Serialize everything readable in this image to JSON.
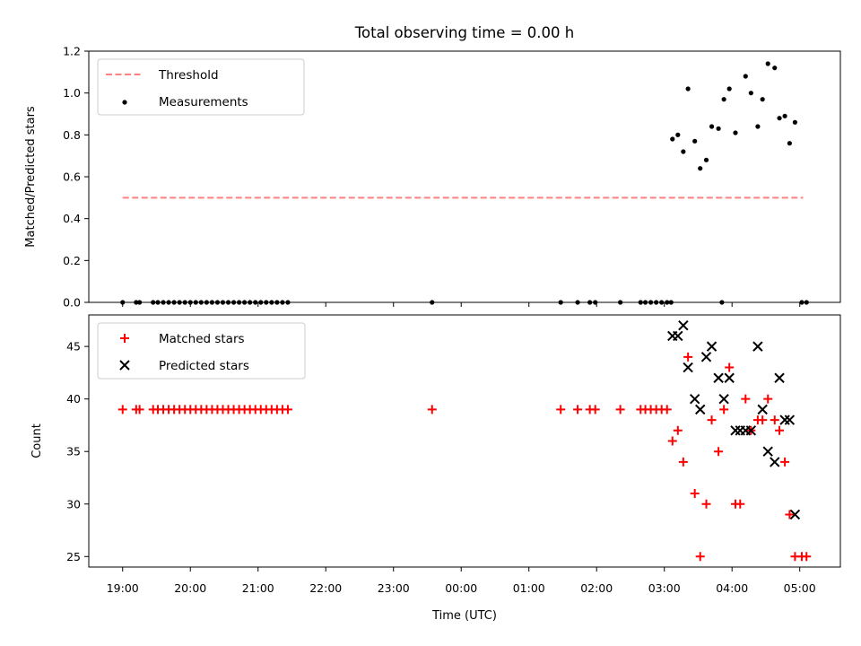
{
  "chart_data": [
    {
      "type": "scatter",
      "title": "Total observing time = 0.00 h",
      "xlabel": "",
      "ylabel": "Matched/Predicted stars",
      "xlim": [
        -0.5,
        10.6
      ],
      "ylim": [
        0,
        1.2
      ],
      "yticks": [
        "0.0",
        "0.2",
        "0.4",
        "0.6",
        "0.8",
        "1.0",
        "1.2"
      ],
      "legend_position": "top-left",
      "threshold": {
        "name": "Threshold",
        "value": 0.5,
        "x_range": [
          0,
          10.05
        ],
        "color": "#ff8080",
        "style": "dashed"
      },
      "series": [
        {
          "name": "Measurements",
          "color": "#000000",
          "marker": "dot",
          "points": [
            [
              0,
              0
            ],
            [
              0.2,
              0
            ],
            [
              0.25,
              0
            ],
            [
              0.45,
              0
            ],
            [
              0.52,
              0
            ],
            [
              0.6,
              0
            ],
            [
              0.68,
              0
            ],
            [
              0.76,
              0
            ],
            [
              0.84,
              0
            ],
            [
              0.92,
              0
            ],
            [
              1.0,
              0
            ],
            [
              1.08,
              0
            ],
            [
              1.16,
              0
            ],
            [
              1.24,
              0
            ],
            [
              1.32,
              0
            ],
            [
              1.4,
              0
            ],
            [
              1.48,
              0
            ],
            [
              1.56,
              0
            ],
            [
              1.64,
              0
            ],
            [
              1.72,
              0
            ],
            [
              1.8,
              0
            ],
            [
              1.88,
              0
            ],
            [
              1.96,
              0
            ],
            [
              2.04,
              0
            ],
            [
              2.12,
              0
            ],
            [
              2.2,
              0
            ],
            [
              2.28,
              0
            ],
            [
              2.36,
              0
            ],
            [
              2.44,
              0
            ],
            [
              4.57,
              0
            ],
            [
              6.47,
              0
            ],
            [
              6.72,
              0
            ],
            [
              6.9,
              0
            ],
            [
              6.98,
              0
            ],
            [
              7.35,
              0
            ],
            [
              7.65,
              0
            ],
            [
              7.72,
              0
            ],
            [
              7.8,
              0
            ],
            [
              7.88,
              0
            ],
            [
              7.96,
              0
            ],
            [
              8.04,
              0
            ],
            [
              8.1,
              0
            ],
            [
              8.85,
              0
            ],
            [
              10.03,
              0
            ],
            [
              10.1,
              0
            ],
            [
              8.12,
              0.78
            ],
            [
              8.2,
              0.8
            ],
            [
              8.28,
              0.72
            ],
            [
              8.35,
              1.02
            ],
            [
              8.45,
              0.77
            ],
            [
              8.53,
              0.64
            ],
            [
              8.62,
              0.68
            ],
            [
              8.7,
              0.84
            ],
            [
              8.8,
              0.83
            ],
            [
              8.88,
              0.97
            ],
            [
              8.96,
              1.02
            ],
            [
              9.05,
              0.81
            ],
            [
              9.2,
              1.08
            ],
            [
              9.28,
              1.0
            ],
            [
              9.38,
              0.84
            ],
            [
              9.45,
              0.97
            ],
            [
              9.53,
              1.14
            ],
            [
              9.63,
              1.12
            ],
            [
              9.7,
              0.88
            ],
            [
              9.78,
              0.89
            ],
            [
              9.85,
              0.76
            ],
            [
              9.93,
              0.86
            ]
          ]
        }
      ]
    },
    {
      "type": "scatter",
      "title": "",
      "xlabel": "Time (UTC)",
      "ylabel": "Count",
      "xlim": [
        -0.5,
        10.6
      ],
      "ylim": [
        24,
        48
      ],
      "yticks": [
        "25",
        "30",
        "35",
        "40",
        "45"
      ],
      "xticks": [
        "19:00",
        "20:00",
        "21:00",
        "22:00",
        "23:00",
        "00:00",
        "01:00",
        "02:00",
        "03:00",
        "04:00",
        "05:00"
      ],
      "legend_position": "top-left",
      "series": [
        {
          "name": "Matched stars",
          "color": "#ff0000",
          "marker": "plus",
          "points": [
            [
              0,
              39
            ],
            [
              0.2,
              39
            ],
            [
              0.25,
              39
            ],
            [
              0.45,
              39
            ],
            [
              0.52,
              39
            ],
            [
              0.6,
              39
            ],
            [
              0.68,
              39
            ],
            [
              0.76,
              39
            ],
            [
              0.84,
              39
            ],
            [
              0.92,
              39
            ],
            [
              1.0,
              39
            ],
            [
              1.08,
              39
            ],
            [
              1.16,
              39
            ],
            [
              1.24,
              39
            ],
            [
              1.32,
              39
            ],
            [
              1.4,
              39
            ],
            [
              1.48,
              39
            ],
            [
              1.56,
              39
            ],
            [
              1.64,
              39
            ],
            [
              1.72,
              39
            ],
            [
              1.8,
              39
            ],
            [
              1.88,
              39
            ],
            [
              1.96,
              39
            ],
            [
              2.04,
              39
            ],
            [
              2.12,
              39
            ],
            [
              2.2,
              39
            ],
            [
              2.28,
              39
            ],
            [
              2.36,
              39
            ],
            [
              2.44,
              39
            ],
            [
              4.57,
              39
            ],
            [
              6.47,
              39
            ],
            [
              6.72,
              39
            ],
            [
              6.9,
              39
            ],
            [
              6.98,
              39
            ],
            [
              7.35,
              39
            ],
            [
              7.65,
              39
            ],
            [
              7.72,
              39
            ],
            [
              7.8,
              39
            ],
            [
              7.88,
              39
            ],
            [
              7.96,
              39
            ],
            [
              8.04,
              39
            ],
            [
              8.12,
              36
            ],
            [
              8.2,
              37
            ],
            [
              8.28,
              34
            ],
            [
              8.35,
              44
            ],
            [
              8.45,
              31
            ],
            [
              8.53,
              25
            ],
            [
              8.62,
              30
            ],
            [
              8.7,
              38
            ],
            [
              8.8,
              35
            ],
            [
              8.88,
              39
            ],
            [
              8.96,
              43
            ],
            [
              9.05,
              30
            ],
            [
              9.12,
              30
            ],
            [
              9.2,
              40
            ],
            [
              9.28,
              37
            ],
            [
              9.38,
              38
            ],
            [
              9.45,
              38
            ],
            [
              9.53,
              40
            ],
            [
              9.63,
              38
            ],
            [
              9.7,
              37
            ],
            [
              9.78,
              34
            ],
            [
              9.85,
              29
            ],
            [
              9.93,
              25
            ],
            [
              10.03,
              25
            ],
            [
              10.1,
              25
            ]
          ]
        },
        {
          "name": "Predicted stars",
          "color": "#000000",
          "marker": "x",
          "points": [
            [
              8.12,
              46
            ],
            [
              8.2,
              46
            ],
            [
              8.28,
              47
            ],
            [
              8.35,
              43
            ],
            [
              8.45,
              40
            ],
            [
              8.53,
              39
            ],
            [
              8.62,
              44
            ],
            [
              8.7,
              45
            ],
            [
              8.8,
              42
            ],
            [
              8.88,
              40
            ],
            [
              8.96,
              42
            ],
            [
              9.05,
              37
            ],
            [
              9.12,
              37
            ],
            [
              9.2,
              37
            ],
            [
              9.28,
              37
            ],
            [
              9.38,
              45
            ],
            [
              9.45,
              39
            ],
            [
              9.53,
              35
            ],
            [
              9.63,
              34
            ],
            [
              9.7,
              42
            ],
            [
              9.78,
              38
            ],
            [
              9.85,
              38
            ],
            [
              9.93,
              29
            ]
          ]
        }
      ]
    }
  ]
}
